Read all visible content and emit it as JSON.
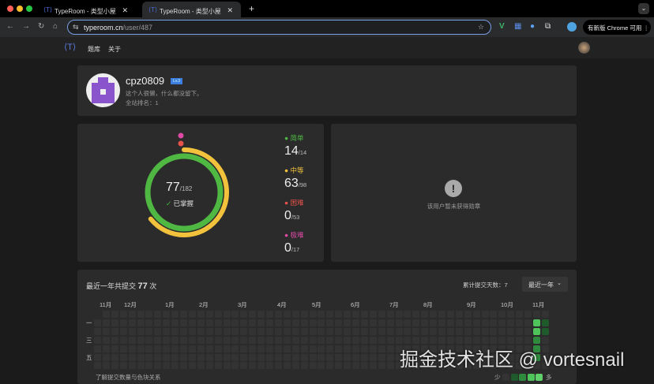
{
  "browser": {
    "tabs": [
      {
        "title": "TypeRoom - 类型小屋"
      },
      {
        "title": "TypeRoom - 类型小屋"
      }
    ],
    "url_host": "typeroom.cn",
    "url_path": "/user/487",
    "update_label": "有新版 Chrome 可用"
  },
  "site_nav": {
    "items": [
      "题库",
      "关于"
    ]
  },
  "profile": {
    "username": "cpz0809",
    "level": "Lv.3",
    "bio": "这个人很懒，什么都没留下。",
    "rank_label": "全站排名：",
    "rank": "1"
  },
  "stats": {
    "solved": "77",
    "total": "/182",
    "mastered_label": "已掌握",
    "difficulties": [
      {
        "label": "简单",
        "solved": "14",
        "total": "/14",
        "color": "#4fb843"
      },
      {
        "label": "中等",
        "solved": "63",
        "total": "/98",
        "color": "#f2c23d"
      },
      {
        "label": "困难",
        "solved": "0",
        "total": "/53",
        "color": "#e8524a"
      },
      {
        "label": "极难",
        "solved": "0",
        "total": "/17",
        "color": "#e04aa6"
      }
    ]
  },
  "badges": {
    "empty_text": "该用户暂未获得勋章"
  },
  "activity": {
    "title_prefix": "最近一年共提交",
    "count": "77",
    "title_suffix": "次",
    "days_label": "累计提交天数：",
    "days": "7",
    "range_select": "最近一年",
    "months": [
      "11月",
      "12月",
      "1月",
      "2月",
      "3月",
      "4月",
      "5月",
      "6月",
      "7月",
      "8月",
      "9月",
      "10月",
      "11月"
    ],
    "weekday_labels": [
      "一",
      "三",
      "五"
    ],
    "legend_link": "了解提交数量与色块关系",
    "legend_less": "少",
    "legend_more": "多",
    "active_cells": [
      [
        51,
        1,
        3
      ],
      [
        51,
        2,
        3
      ],
      [
        51,
        3,
        2
      ],
      [
        51,
        4,
        2
      ],
      [
        51,
        5,
        2
      ],
      [
        52,
        1,
        1
      ],
      [
        52,
        2,
        1
      ]
    ]
  },
  "watermark": "掘金技术社区 @ vortesnail"
}
